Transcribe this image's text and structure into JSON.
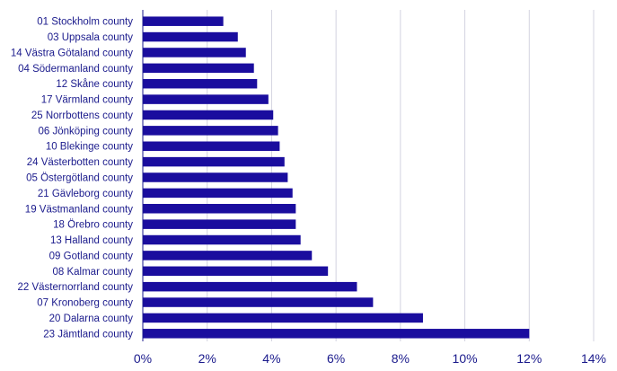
{
  "chart_data": {
    "type": "bar",
    "orientation": "horizontal",
    "title": "",
    "xlabel": "",
    "ylabel": "",
    "xlim": [
      0,
      14
    ],
    "x_ticks": [
      "0%",
      "2%",
      "4%",
      "6%",
      "8%",
      "10%",
      "12%",
      "14%"
    ],
    "x_tick_values": [
      0,
      2,
      4,
      6,
      8,
      10,
      12,
      14
    ],
    "grid": "vertical",
    "legend": "none",
    "bar_color": "#1a0d9e",
    "categories": [
      "01 Stockholm county",
      "03 Uppsala county",
      "14 Västra Götaland county",
      "04 Södermanland county",
      "12 Skåne county",
      "17 Värmland county",
      "25 Norrbottens county",
      "06 Jönköping county",
      "10 Blekinge county",
      "24 Västerbotten county",
      "05 Östergötland county",
      "21 Gävleborg county",
      "19 Västmanland county",
      "18 Örebro county",
      "13 Halland county",
      "09 Gotland county",
      "08 Kalmar county",
      "22 Västernorrland county",
      "07 Kronoberg county",
      "20 Dalarna county",
      "23 Jämtland county"
    ],
    "values": [
      2.5,
      2.95,
      3.2,
      3.45,
      3.55,
      3.9,
      4.05,
      4.2,
      4.25,
      4.4,
      4.5,
      4.65,
      4.75,
      4.75,
      4.9,
      5.25,
      5.75,
      6.65,
      7.15,
      8.7,
      12.0
    ]
  }
}
